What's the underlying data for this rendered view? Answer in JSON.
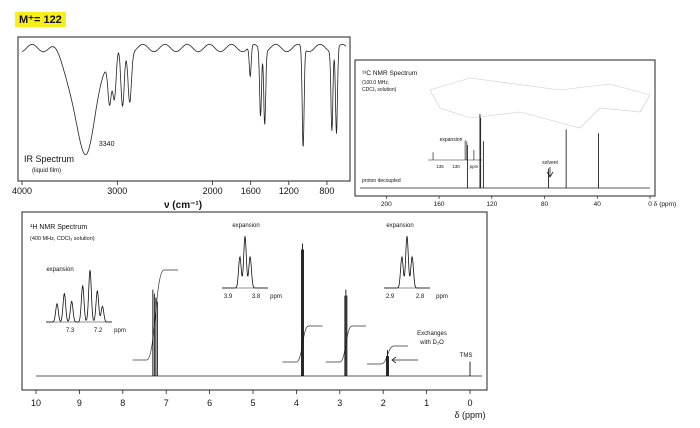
{
  "header": {
    "molecular_ion": "M⁺= 122"
  },
  "chart_data": [
    {
      "type": "line",
      "title": "IR Spectrum",
      "subtitle": "(liquid film)",
      "xlabel": "ν (cm⁻¹)",
      "x_ticks": [
        4000,
        3000,
        2000,
        1600,
        1200,
        800
      ],
      "xlim": [
        4000,
        600
      ],
      "annotations": [
        {
          "text": "3340",
          "x": 3340
        }
      ],
      "peaks": [
        {
          "x": 3340,
          "depth": 0.85
        },
        {
          "x": 3080,
          "depth": 0.35
        },
        {
          "x": 3030,
          "depth": 0.38
        },
        {
          "x": 2945,
          "depth": 0.5
        },
        {
          "x": 2870,
          "depth": 0.42
        },
        {
          "x": 1605,
          "depth": 0.25
        },
        {
          "x": 1497,
          "depth": 0.55
        },
        {
          "x": 1453,
          "depth": 0.6
        },
        {
          "x": 1050,
          "depth": 0.82
        },
        {
          "x": 748,
          "depth": 0.65
        },
        {
          "x": 700,
          "depth": 0.7
        }
      ]
    },
    {
      "type": "line",
      "title": "¹³C NMR Spectrum",
      "subtitle_lines": [
        "(100.0 MHz,",
        "CDCl₃ solution)"
      ],
      "xlabel": "δ (ppm)",
      "x_ticks": [
        200,
        160,
        120,
        80,
        40,
        0
      ],
      "xlim": [
        220,
        0
      ],
      "labels": {
        "decoupled": "proton decoupled",
        "expansion": "expansion",
        "solvent": "solvent"
      },
      "inset": {
        "x_ticks": [
          "135",
          "130",
          "ppm"
        ],
        "peaks": [
          138.5,
          129.0,
          128.5,
          126.4
        ]
      },
      "peaks": [
        {
          "x": 138.5,
          "height": 0.55
        },
        {
          "x": 129.0,
          "height": 0.95
        },
        {
          "x": 128.5,
          "height": 0.9
        },
        {
          "x": 126.4,
          "height": 0.6
        },
        {
          "x": 77.0,
          "height": 0.25
        },
        {
          "x": 63.6,
          "height": 0.75
        },
        {
          "x": 39.1,
          "height": 0.7
        }
      ]
    },
    {
      "type": "line",
      "title": "¹H NMR Spectrum",
      "subtitle": "(400 MHz, CDCl₃ solution)",
      "xlabel": "δ (ppm)",
      "x_ticks": [
        10,
        9,
        8,
        7,
        6,
        5,
        4,
        3,
        2,
        1,
        0
      ],
      "xlim": [
        10,
        0
      ],
      "labels": {
        "exchanges": [
          "Exchanges",
          "with D₂O"
        ],
        "tms": "TMS"
      },
      "insets": [
        {
          "label": "expansion",
          "x_ticks": [
            "7.3",
            "7.2",
            "ppm"
          ]
        },
        {
          "label": "expansion",
          "x_ticks": [
            "3.9",
            "3.8",
            "ppm"
          ]
        },
        {
          "label": "expansion",
          "x_ticks": [
            "2.9",
            "2.8",
            "ppm"
          ]
        }
      ],
      "peaks": [
        {
          "x": 7.25,
          "height": 0.6,
          "integral": 5
        },
        {
          "x": 3.86,
          "height": 0.92,
          "integral": 2
        },
        {
          "x": 2.86,
          "height": 0.6,
          "integral": 2
        },
        {
          "x": 1.9,
          "height": 0.18,
          "integral": 1
        },
        {
          "x": 0.0,
          "height": 0.1
        }
      ]
    }
  ]
}
